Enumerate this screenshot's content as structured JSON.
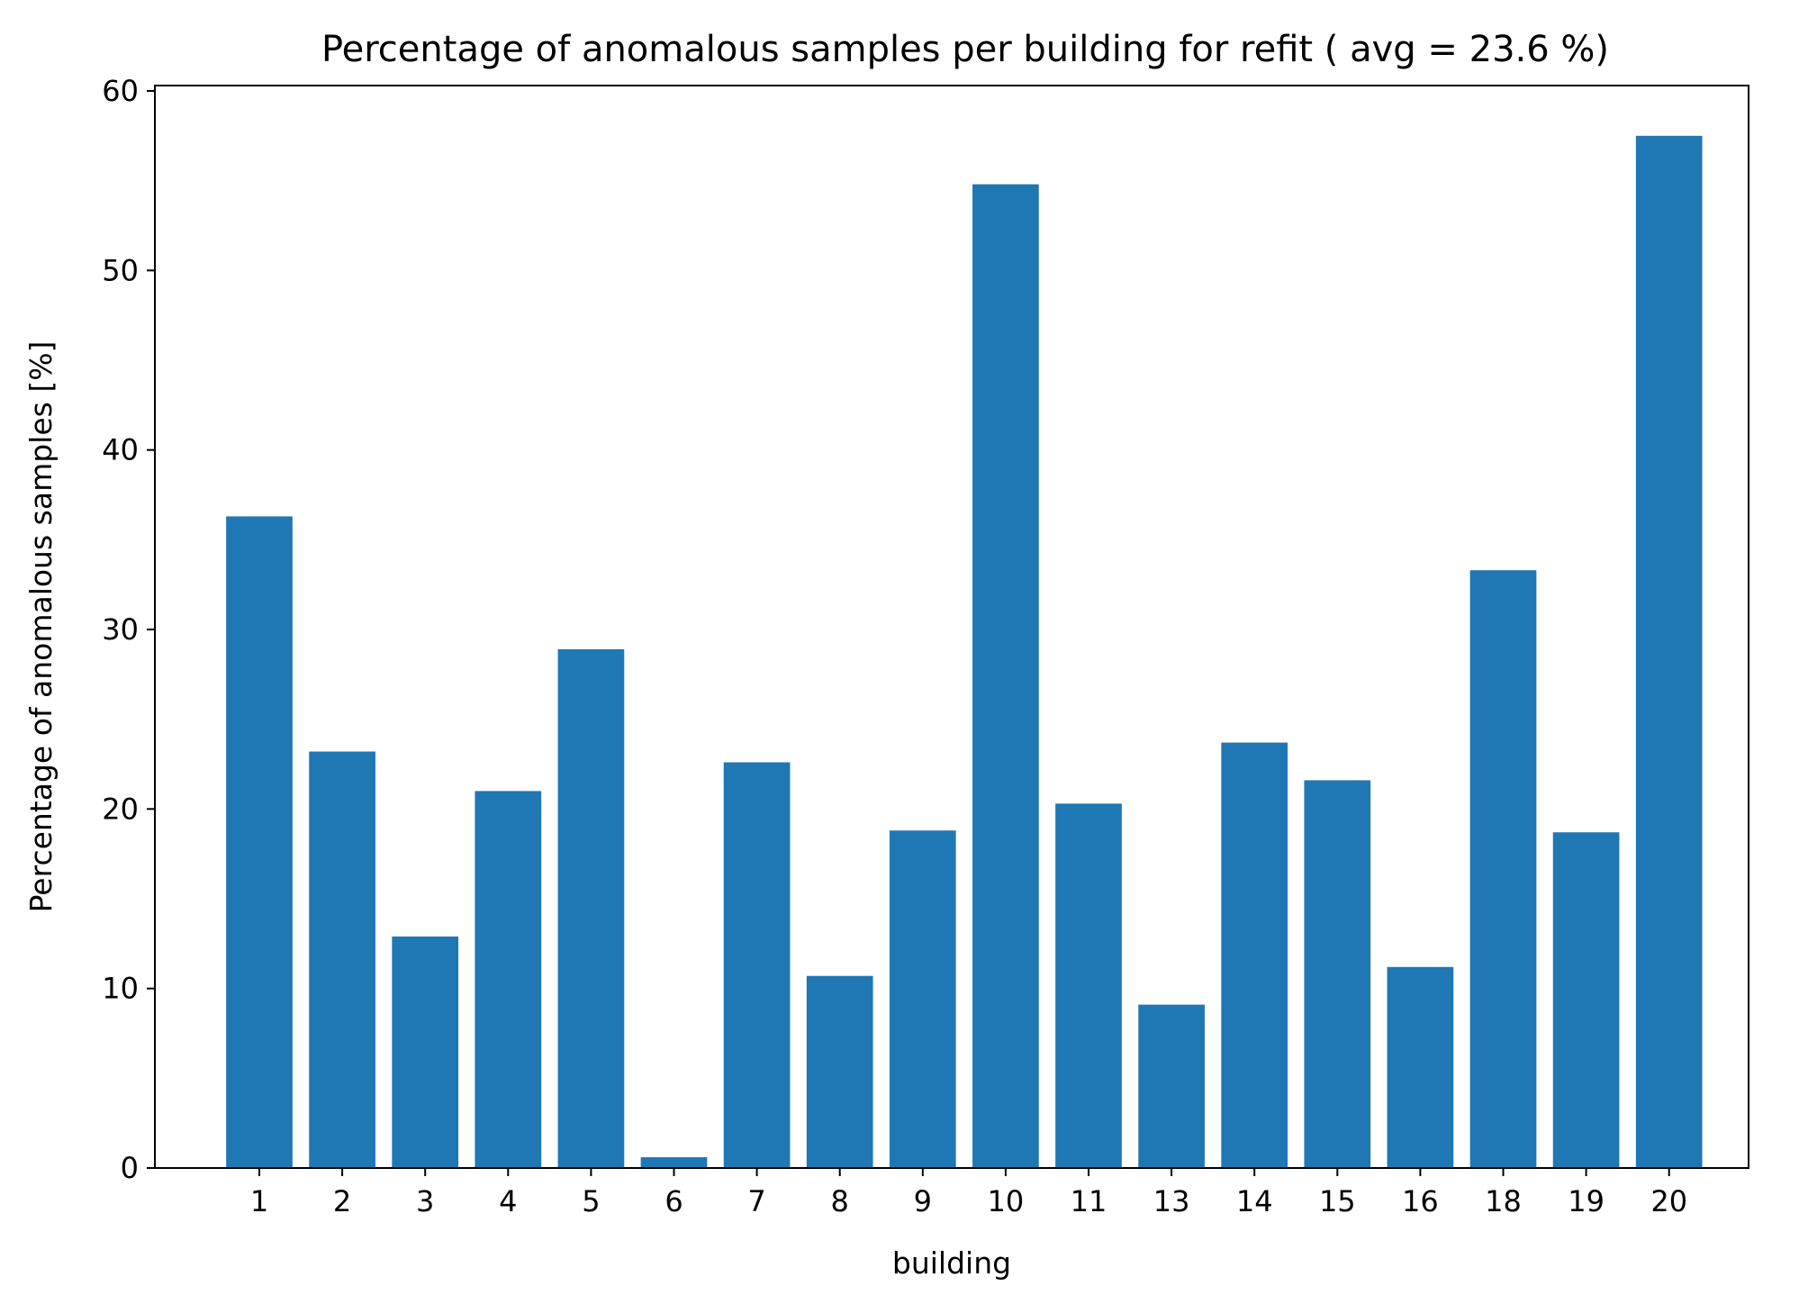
{
  "chart_data": {
    "type": "bar",
    "title": "Percentage of anomalous samples per building for refit ( avg = 23.6 %)",
    "xlabel": "building",
    "ylabel": "Percentage of anomalous samples [%]",
    "categories": [
      "1",
      "2",
      "3",
      "4",
      "5",
      "6",
      "7",
      "8",
      "9",
      "10",
      "11",
      "13",
      "14",
      "15",
      "16",
      "18",
      "19",
      "20"
    ],
    "values": [
      36.3,
      23.2,
      12.9,
      21.0,
      28.9,
      0.6,
      22.6,
      10.7,
      18.8,
      54.8,
      20.3,
      9.1,
      23.7,
      21.6,
      11.2,
      33.3,
      18.7,
      57.5
    ],
    "ylim": [
      0,
      60.3
    ],
    "yticks": [
      0,
      10,
      20,
      30,
      40,
      50,
      60
    ],
    "bar_color": "#1f77b4",
    "grid": false,
    "legend": "none"
  }
}
